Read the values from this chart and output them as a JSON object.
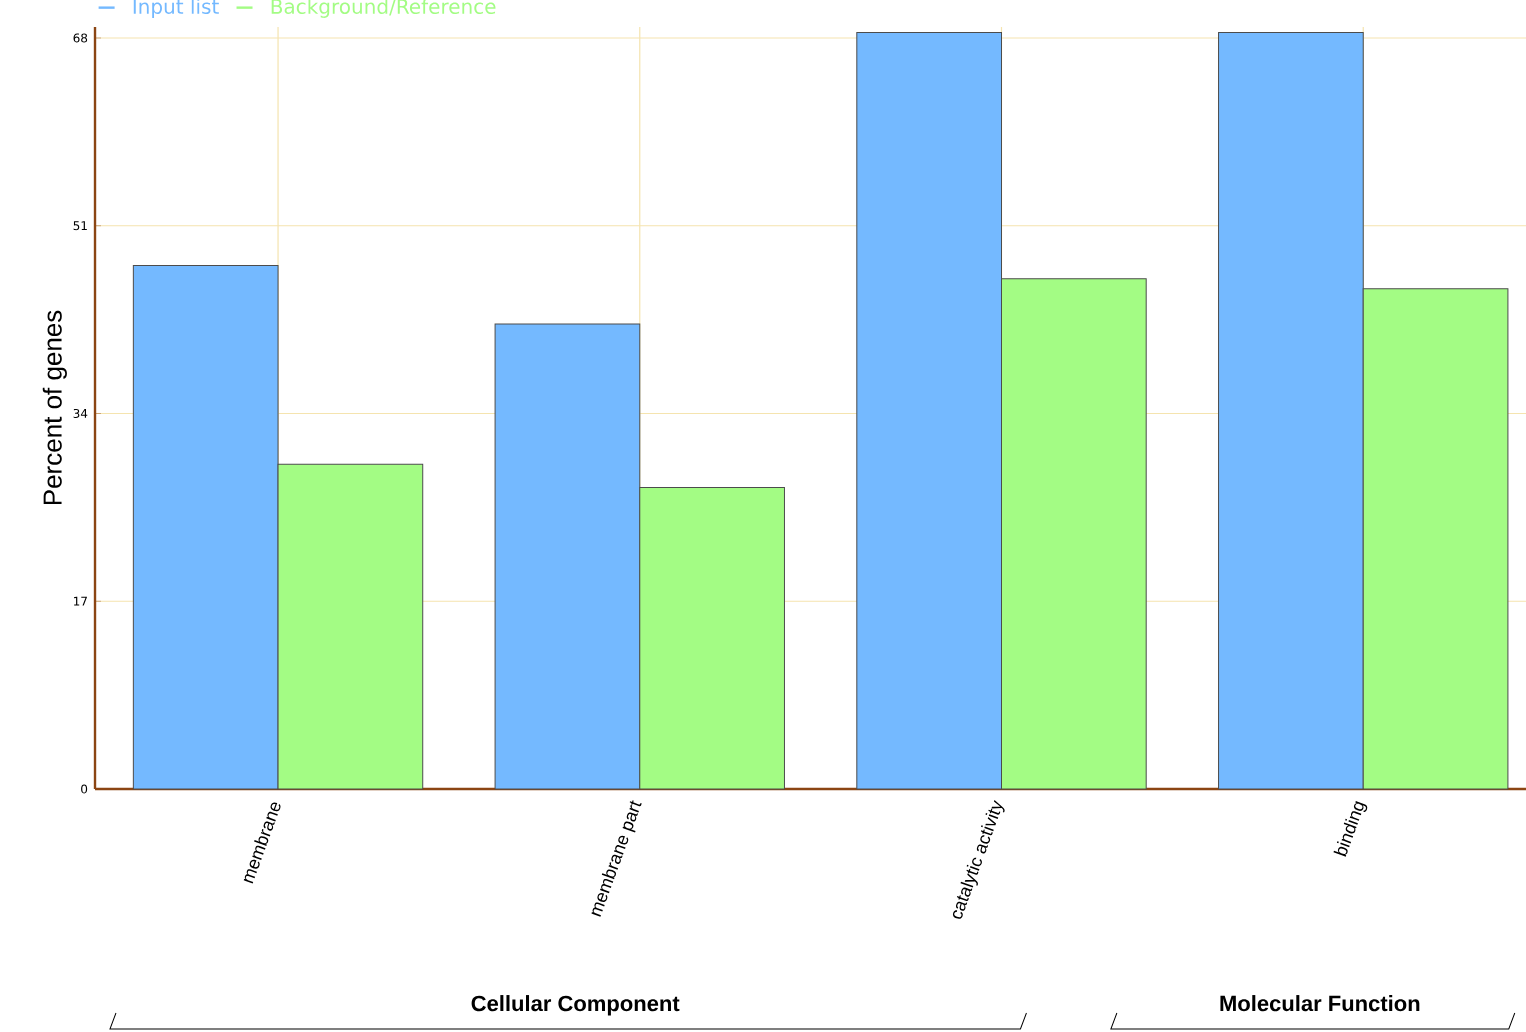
{
  "chart_data": {
    "type": "bar",
    "ylabel": "Percent of genes",
    "categories": [
      "membrane",
      "membrane part",
      "catalytic activity",
      "binding"
    ],
    "series": [
      {
        "name": "Input list",
        "color": "#74b9ff",
        "values": [
          47.4,
          42.1,
          68.5,
          68.5
        ]
      },
      {
        "name": "Background/Reference",
        "color": "#a3fc84",
        "values": [
          29.4,
          27.3,
          46.2,
          45.3
        ]
      }
    ],
    "ylim": [
      0,
      69
    ],
    "yticks": [
      0,
      17,
      34,
      51,
      68
    ],
    "grid": true,
    "legend": "top left",
    "annotations": [
      "Cellular Component",
      "Molecular Function"
    ]
  }
}
